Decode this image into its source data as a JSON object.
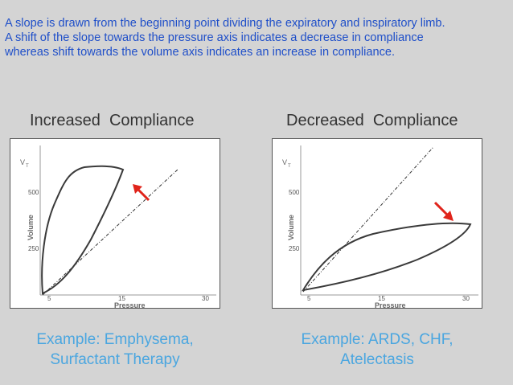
{
  "description_lines": [
    "A slope is drawn from the beginning point dividing the expiratory and inspiratory limb.",
    "A shift of the slope towards the pressure axis indicates a decrease in compliance",
    "whereas shift towards the volume axis indicates an increase in compliance."
  ],
  "panels": [
    {
      "title": "Increased  Compliance",
      "axis": {
        "y_symbol": "V",
        "y_subscript": "T",
        "y_label": "Volume",
        "x_label": "Pressure",
        "y_ticks": [
          "500",
          "250"
        ],
        "x_ticks": [
          "5",
          "15",
          "30"
        ]
      },
      "arrow_direction": "up-left toward volume axis",
      "example_lines": [
        "Example: Emphysema,",
        "Surfactant Therapy"
      ]
    },
    {
      "title": "Decreased  Compliance",
      "axis": {
        "y_symbol": "V",
        "y_subscript": "T",
        "y_label": "Volume",
        "x_label": "Pressure",
        "y_ticks": [
          "500",
          "250"
        ],
        "x_ticks": [
          "5",
          "15",
          "30"
        ]
      },
      "arrow_direction": "down-right toward pressure axis",
      "example_lines": [
        "Example: ARDS, CHF,",
        "Atelectasis"
      ]
    }
  ],
  "colors": {
    "intro_text": "#1f4fc9",
    "example_text": "#4aa6e0",
    "arrow": "#e0241b",
    "loop": "#3a3a3a",
    "background": "#d4d4d4"
  }
}
